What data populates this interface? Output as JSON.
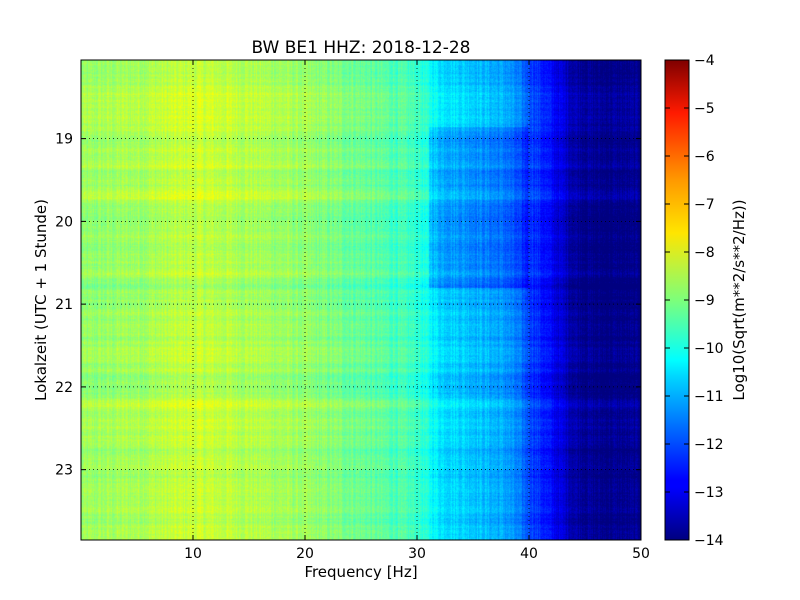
{
  "chart_data": {
    "type": "heatmap",
    "title": "BW BE1 HHZ: 2018-12-28",
    "xlabel": "Frequency [Hz]",
    "ylabel": "Lokalzeit (UTC + 1 Stunde)",
    "colorbar_label": "Log10(Sqrt(m**2/s**2/Hz))",
    "xlim": [
      0,
      50
    ],
    "ylim": [
      18.05,
      23.85
    ],
    "y_inverted": true,
    "x_ticks": [
      "10",
      "20",
      "30",
      "40",
      "50"
    ],
    "y_ticks": [
      "19",
      "20",
      "21",
      "22",
      "23"
    ],
    "x_tick_values": [
      10,
      20,
      30,
      40,
      50
    ],
    "y_tick_values": [
      19,
      20,
      21,
      22,
      23
    ],
    "color_range": [
      -14,
      -4
    ],
    "colorbar_ticks": [
      "−4",
      "−5",
      "−6",
      "−7",
      "−8",
      "−9",
      "−10",
      "−11",
      "−12",
      "−13",
      "−14"
    ],
    "colorbar_tick_values": [
      -4,
      -5,
      -6,
      -7,
      -8,
      -9,
      -10,
      -11,
      -12,
      -13,
      -14
    ],
    "colormap": "jet",
    "grid": true,
    "frequency_profile": {
      "frequency_hz": [
        0,
        5,
        10,
        15,
        20,
        25,
        30,
        32,
        35,
        38,
        40,
        42,
        44,
        46,
        50
      ],
      "log10_amplitude": [
        -8.8,
        -8.6,
        -8.3,
        -8.5,
        -8.8,
        -9.2,
        -9.7,
        -10.5,
        -10.8,
        -11.2,
        -12.0,
        -12.8,
        -13.6,
        -13.9,
        -13.9
      ]
    }
  }
}
